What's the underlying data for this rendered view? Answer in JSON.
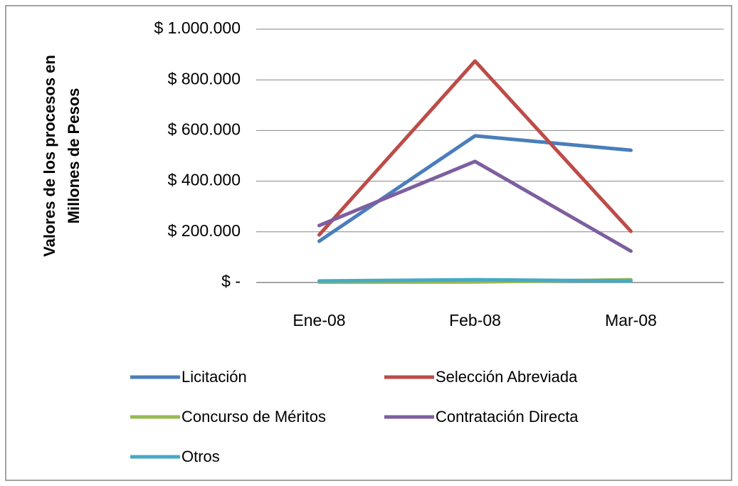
{
  "chart_data": {
    "type": "line",
    "ylabel": [
      "Valores de los procesos en",
      "Millones de Pesos"
    ],
    "categories": [
      "Ene-08",
      "Feb-08",
      "Mar-08"
    ],
    "series": [
      {
        "name": "Licitación",
        "color": "#4a7ebb",
        "values": [
          163000,
          579000,
          522000
        ]
      },
      {
        "name": "Selección Abreviada",
        "color": "#be4b48",
        "values": [
          188000,
          874000,
          202000
        ]
      },
      {
        "name": "Concurso de Méritos",
        "color": "#98b954",
        "values": [
          1000,
          2000,
          11000
        ]
      },
      {
        "name": "Contratación Directa",
        "color": "#7d5fa0",
        "values": [
          225000,
          478000,
          124000
        ]
      },
      {
        "name": "Otros",
        "color": "#46aac5",
        "values": [
          6000,
          11000,
          6000
        ]
      }
    ],
    "ylim": [
      0,
      1000000
    ],
    "yticks": [
      {
        "value": 0,
        "label": "$ -"
      },
      {
        "value": 200000,
        "label": "$ 200.000"
      },
      {
        "value": 400000,
        "label": "$ 400.000"
      },
      {
        "value": 600000,
        "label": "$ 600.000"
      },
      {
        "value": 800000,
        "label": "$ 800.000"
      },
      {
        "value": 1000000,
        "label": "$ 1.000.000"
      }
    ],
    "grid": true,
    "legend": "bottom"
  }
}
